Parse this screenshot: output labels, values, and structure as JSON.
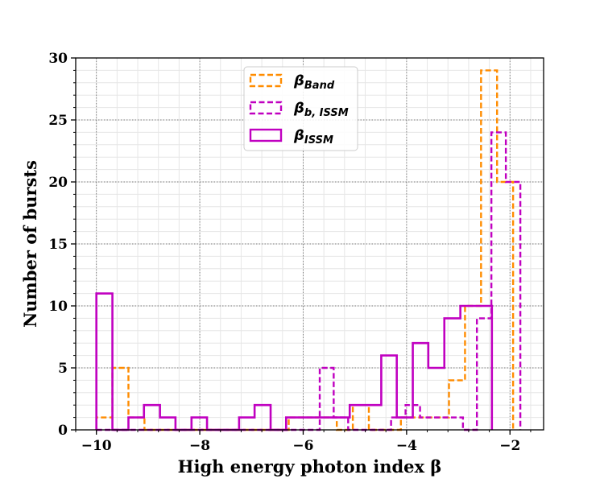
{
  "chart_data": {
    "type": "histogram",
    "title": "",
    "xlabel": "High energy photon index β",
    "ylabel": "Number of bursts",
    "xlim": [
      -10.4,
      -1.35
    ],
    "ylim": [
      0,
      30
    ],
    "xticks": [
      -10,
      -8,
      -6,
      -4,
      -2
    ],
    "xtick_labels": [
      "−10",
      "−8",
      "−6",
      "−4",
      "−2"
    ],
    "yticks": [
      0,
      5,
      10,
      15,
      20,
      25,
      30
    ],
    "ytick_labels": [
      "0",
      "5",
      "10",
      "15",
      "20",
      "25",
      "30"
    ],
    "grid": true,
    "legend_position": "upper-center",
    "series": [
      {
        "name": "β",
        "subscript": "Band",
        "color": "#ff8c00",
        "style": "dashed",
        "bin_edges": [
          -10.0,
          -9.69,
          -9.38,
          -9.07,
          -8.76,
          -8.45,
          -8.14,
          -7.83,
          -7.52,
          -7.21,
          -6.9,
          -6.59,
          -6.28,
          -5.97,
          -5.66,
          -5.35,
          -5.04,
          -4.73,
          -4.42,
          -4.11,
          -3.8,
          -3.49,
          -3.18,
          -2.87,
          -2.56,
          -2.25,
          -1.94
        ],
        "counts": [
          1,
          5,
          1,
          0,
          0,
          0,
          0,
          0,
          0,
          0,
          0,
          0,
          1,
          1,
          1,
          0,
          2,
          0,
          0,
          1,
          1,
          1,
          4,
          10,
          29,
          20
        ]
      },
      {
        "name": "β",
        "subscript": "b, ISSM",
        "color": "#c000c0",
        "style": "dashed",
        "bin_edges": [
          -10.0,
          -9.69,
          -9.38,
          -9.07,
          -8.76,
          -8.45,
          -8.14,
          -7.83,
          -7.52,
          -7.21,
          -6.9,
          -6.59,
          -6.28,
          -5.97,
          -5.68,
          -5.41,
          -5.13,
          -4.85,
          -4.58,
          -4.3,
          -4.02,
          -3.74,
          -3.47,
          -3.19,
          -2.91,
          -2.64,
          -2.36,
          -2.08,
          -1.8
        ],
        "counts": [
          0,
          0,
          0,
          0,
          0,
          0,
          0,
          0,
          0,
          0,
          0,
          0,
          0,
          0,
          5,
          1,
          0,
          0,
          0,
          1,
          2,
          1,
          1,
          1,
          0,
          9,
          24,
          20
        ]
      },
      {
        "name": "β",
        "subscript": "ISSM",
        "color": "#c000c0",
        "style": "solid",
        "bin_edges": [
          -10.0,
          -9.69,
          -9.38,
          -9.08,
          -8.77,
          -8.47,
          -8.16,
          -7.86,
          -7.55,
          -7.24,
          -6.94,
          -6.63,
          -6.33,
          -6.02,
          -5.72,
          -5.41,
          -5.1,
          -4.8,
          -4.49,
          -4.19,
          -3.88,
          -3.58,
          -3.27,
          -2.96,
          -2.66,
          -2.35
        ],
        "counts": [
          11,
          0,
          1,
          2,
          1,
          0,
          1,
          0,
          0,
          1,
          2,
          0,
          1,
          1,
          1,
          1,
          2,
          2,
          6,
          1,
          7,
          5,
          9,
          10,
          10
        ]
      }
    ]
  }
}
